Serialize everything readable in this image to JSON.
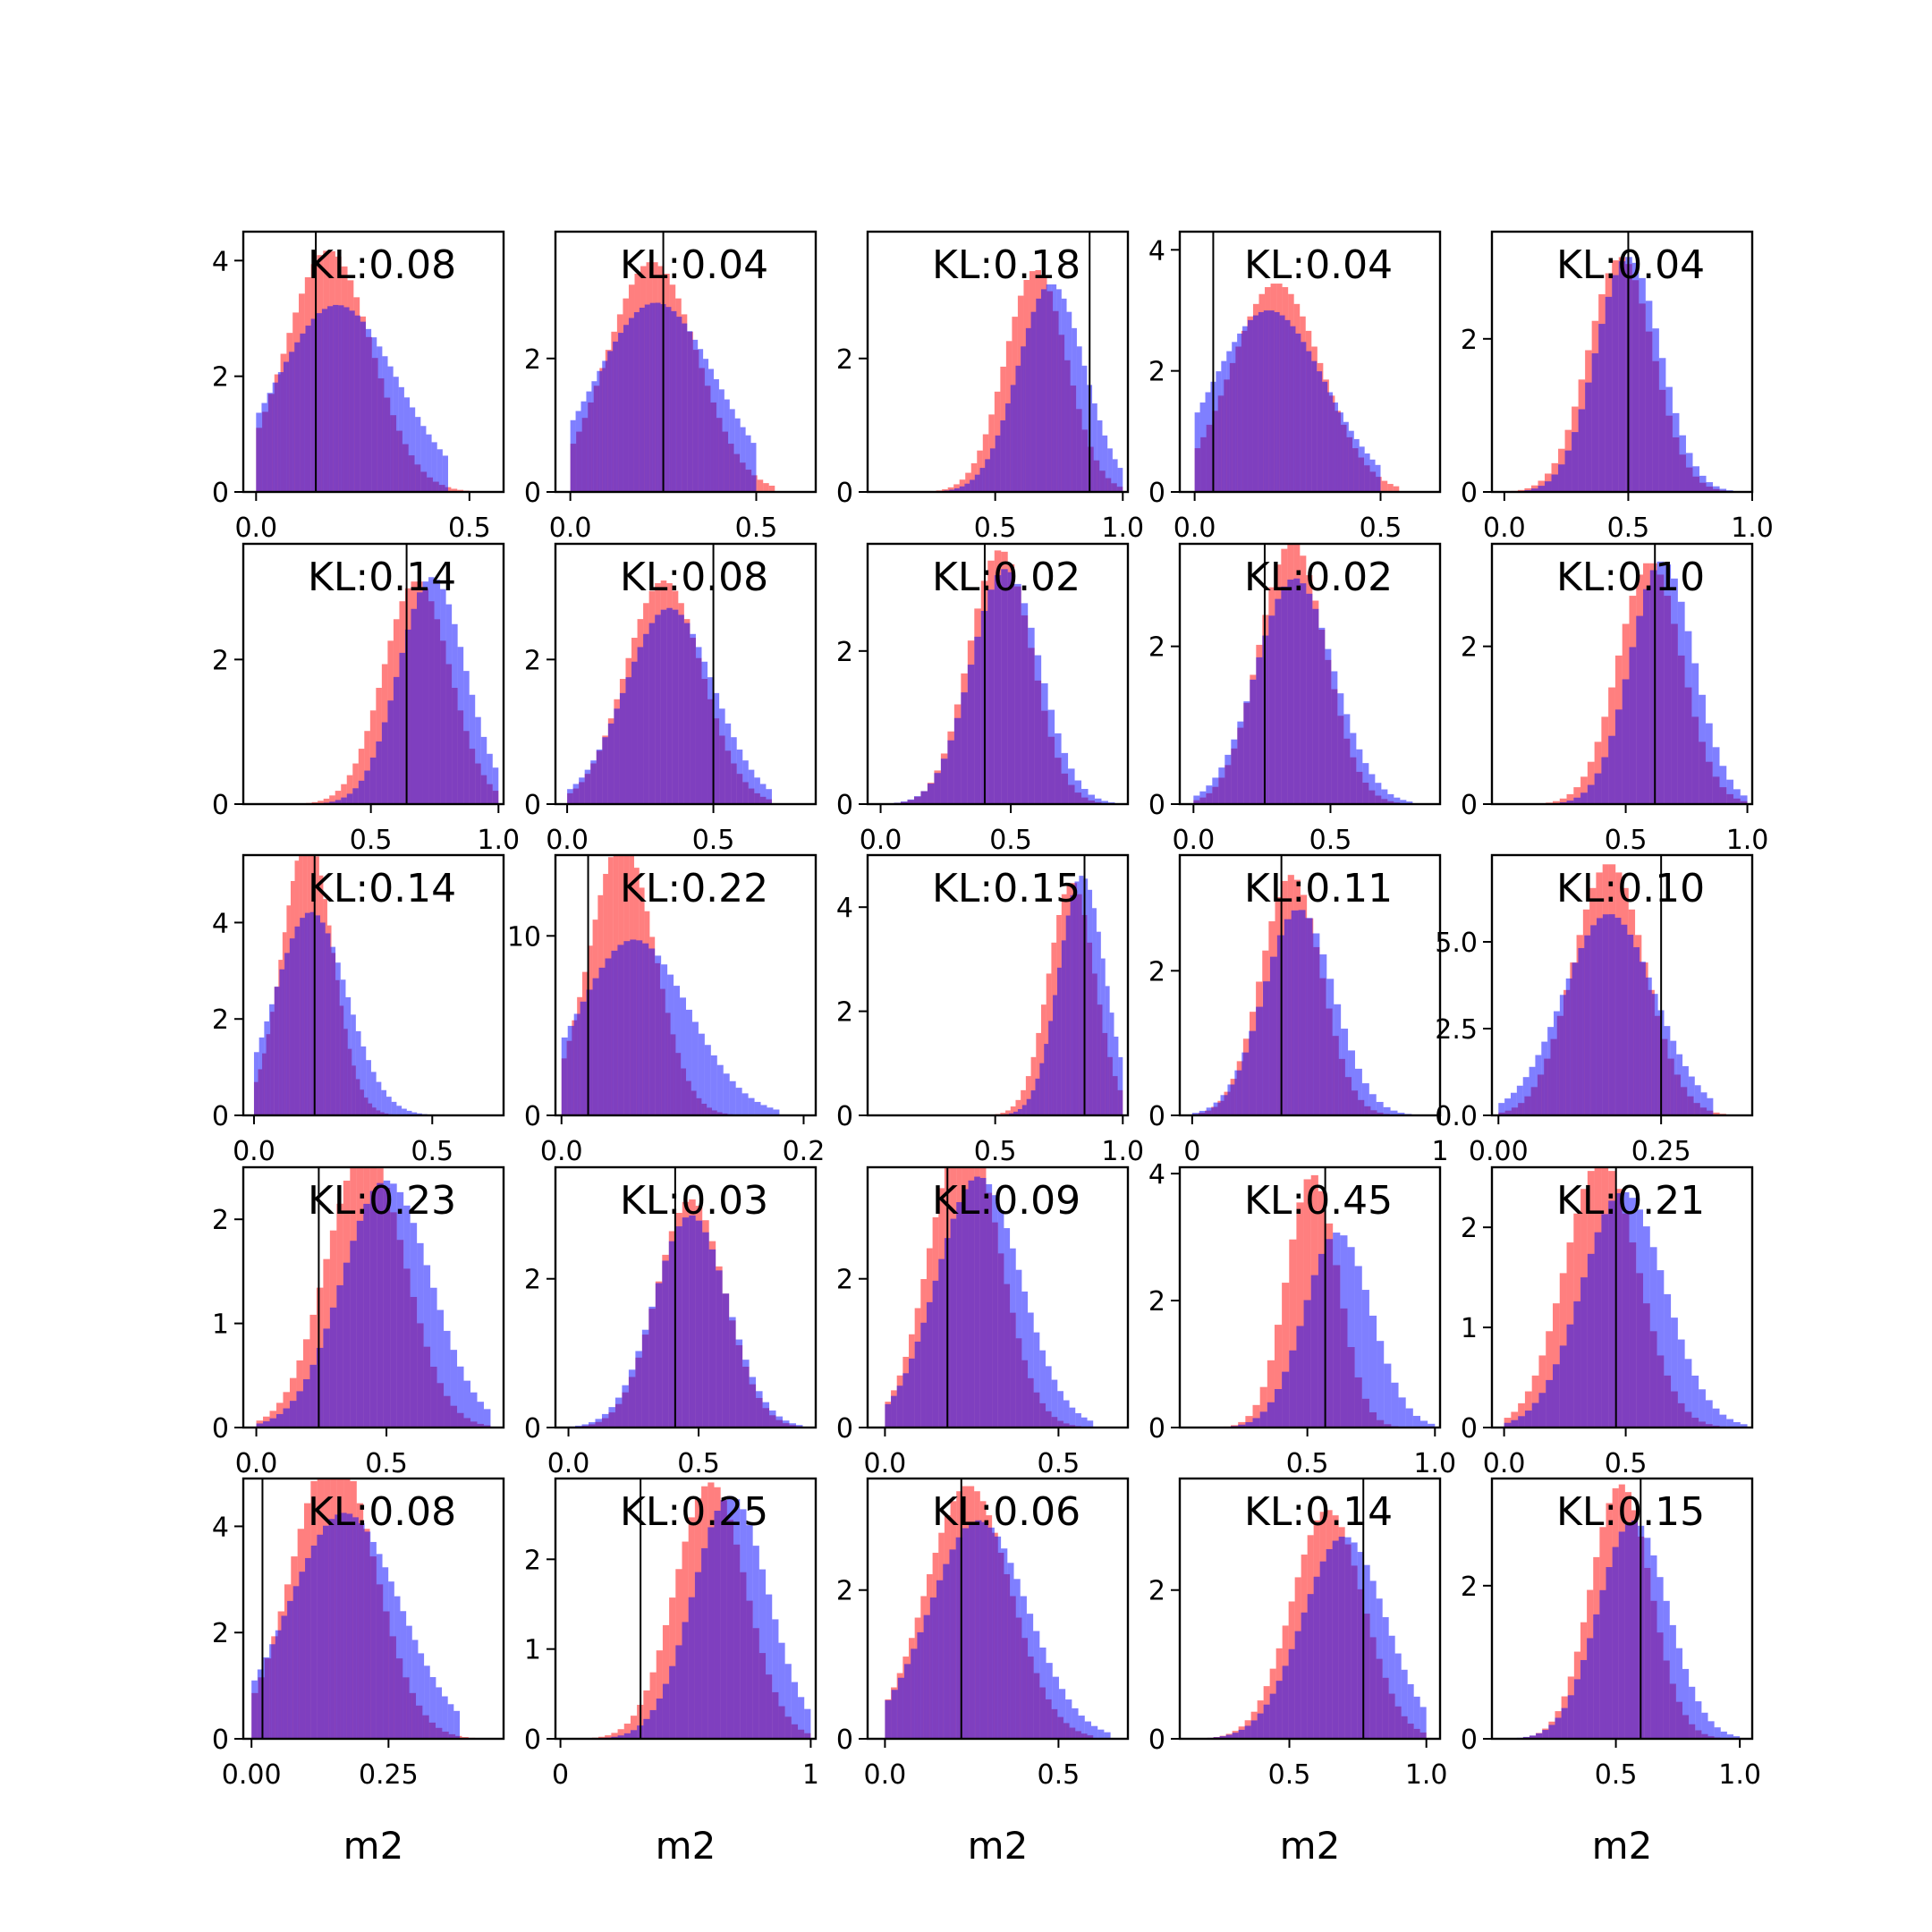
{
  "figure": {
    "background": "#ffffff",
    "red_color": "#ff0000",
    "blue_color": "#0000ff",
    "overlay_opacity": 0.5,
    "marker_color": "#000000",
    "xlabel": "m2"
  },
  "chart_data": [
    {
      "type": "histogram",
      "row": 0,
      "col": 0,
      "annotation": "KL:0.08",
      "xlim": [
        -0.03,
        0.58
      ],
      "ylim": [
        0,
        4.5
      ],
      "xticks": [
        0.0,
        0.5
      ],
      "xtick_labels": [
        "0.0",
        "0.5"
      ],
      "yticks": [
        0,
        2,
        4
      ],
      "ytick_labels": [
        "0",
        "2",
        "4"
      ],
      "marker_x": 0.14,
      "red_dist": {
        "type": "normal",
        "mean": 0.17,
        "sd": 0.1,
        "low": 0.0,
        "high": 0.5
      },
      "blue_dist": {
        "type": "normal",
        "mean": 0.19,
        "sd": 0.14,
        "low": 0.0,
        "high": 0.45
      }
    },
    {
      "type": "histogram",
      "row": 0,
      "col": 1,
      "annotation": "KL:0.04",
      "xlim": [
        -0.04,
        0.66
      ],
      "ylim": [
        0,
        3.9
      ],
      "xticks": [
        0.0,
        0.5
      ],
      "xtick_labels": [
        "0.0",
        "0.5"
      ],
      "yticks": [
        0,
        2
      ],
      "ytick_labels": [
        "0",
        "2"
      ],
      "marker_x": 0.25,
      "red_dist": {
        "type": "normal",
        "mean": 0.22,
        "sd": 0.12,
        "low": 0.0,
        "high": 0.55
      },
      "blue_dist": {
        "type": "normal",
        "mean": 0.23,
        "sd": 0.16,
        "low": 0.0,
        "high": 0.5
      }
    },
    {
      "type": "histogram",
      "row": 0,
      "col": 2,
      "annotation": "KL:0.18",
      "xlim": [
        0.0,
        1.02
      ],
      "ylim": [
        0,
        3.9
      ],
      "xticks": [
        0.5,
        1.0
      ],
      "xtick_labels": [
        "0.5",
        "1.0"
      ],
      "yticks": [
        0,
        2
      ],
      "ytick_labels": [
        "0",
        "2"
      ],
      "marker_x": 0.87,
      "red_dist": {
        "type": "normal",
        "mean": 0.66,
        "sd": 0.12,
        "low": 0.2,
        "high": 1.0
      },
      "blue_dist": {
        "type": "normal",
        "mean": 0.72,
        "sd": 0.13,
        "low": 0.3,
        "high": 1.0
      }
    },
    {
      "type": "histogram",
      "row": 0,
      "col": 3,
      "annotation": "KL:0.04",
      "xlim": [
        -0.04,
        0.66
      ],
      "ylim": [
        0,
        4.3
      ],
      "xticks": [
        0.0,
        0.5
      ],
      "xtick_labels": [
        "0.0",
        "0.5"
      ],
      "yticks": [
        0,
        2,
        4
      ],
      "ytick_labels": [
        "0",
        "2",
        "4"
      ],
      "marker_x": 0.05,
      "red_dist": {
        "type": "normal",
        "mean": 0.22,
        "sd": 0.12,
        "low": 0.0,
        "high": 0.55
      },
      "blue_dist": {
        "type": "normal",
        "mean": 0.2,
        "sd": 0.15,
        "low": 0.0,
        "high": 0.5
      }
    },
    {
      "type": "histogram",
      "row": 0,
      "col": 4,
      "annotation": "KL:0.04",
      "xlim": [
        -0.05,
        1.0
      ],
      "ylim": [
        0,
        3.4
      ],
      "xticks": [
        0.0,
        0.5,
        1.0
      ],
      "xtick_labels": [
        "0.0",
        "0.5",
        "1.0"
      ],
      "yticks": [
        0,
        2
      ],
      "ytick_labels": [
        "0",
        "2"
      ],
      "marker_x": 0.5,
      "red_dist": {
        "type": "normal",
        "mean": 0.47,
        "sd": 0.13,
        "low": 0.0,
        "high": 0.95
      },
      "blue_dist": {
        "type": "normal",
        "mean": 0.5,
        "sd": 0.13,
        "low": 0.0,
        "high": 0.95
      }
    },
    {
      "type": "histogram",
      "row": 1,
      "col": 0,
      "annotation": "KL:0.14",
      "xlim": [
        0.0,
        1.02
      ],
      "ylim": [
        0,
        3.6
      ],
      "xticks": [
        0.5,
        1.0
      ],
      "xtick_labels": [
        "0.5",
        "1.0"
      ],
      "yticks": [
        0,
        2
      ],
      "ytick_labels": [
        "0",
        "2"
      ],
      "marker_x": 0.64,
      "red_dist": {
        "type": "normal",
        "mean": 0.68,
        "sd": 0.13,
        "low": 0.2,
        "high": 1.0
      },
      "blue_dist": {
        "type": "normal",
        "mean": 0.74,
        "sd": 0.13,
        "low": 0.2,
        "high": 1.0
      }
    },
    {
      "type": "histogram",
      "row": 1,
      "col": 1,
      "annotation": "KL:0.08",
      "xlim": [
        -0.04,
        0.85
      ],
      "ylim": [
        0,
        3.6
      ],
      "xticks": [
        0.0,
        0.5
      ],
      "xtick_labels": [
        "0.0",
        "0.5"
      ],
      "yticks": [
        0,
        2
      ],
      "ytick_labels": [
        "0",
        "2"
      ],
      "marker_x": 0.5,
      "red_dist": {
        "type": "normal",
        "mean": 0.33,
        "sd": 0.13,
        "low": 0.0,
        "high": 0.7
      },
      "blue_dist": {
        "type": "normal",
        "mean": 0.35,
        "sd": 0.15,
        "low": 0.0,
        "high": 0.7
      }
    },
    {
      "type": "histogram",
      "row": 1,
      "col": 2,
      "annotation": "KL:0.02",
      "xlim": [
        -0.05,
        0.95
      ],
      "ylim": [
        0,
        3.4
      ],
      "xticks": [
        0.0,
        0.5
      ],
      "xtick_labels": [
        "0.0",
        "0.5"
      ],
      "yticks": [
        0,
        2
      ],
      "ytick_labels": [
        "0",
        "2"
      ],
      "marker_x": 0.4,
      "red_dist": {
        "type": "normal",
        "mean": 0.46,
        "sd": 0.12,
        "low": 0.0,
        "high": 0.9
      },
      "blue_dist": {
        "type": "normal",
        "mean": 0.48,
        "sd": 0.13,
        "low": 0.0,
        "high": 0.9
      }
    },
    {
      "type": "histogram",
      "row": 1,
      "col": 3,
      "annotation": "KL:0.02",
      "xlim": [
        -0.05,
        0.9
      ],
      "ylim": [
        0,
        3.3
      ],
      "xticks": [
        0.0,
        0.5
      ],
      "xtick_labels": [
        "0.0",
        "0.5"
      ],
      "yticks": [
        0,
        2
      ],
      "ytick_labels": [
        "0",
        "2"
      ],
      "marker_x": 0.26,
      "red_dist": {
        "type": "normal",
        "mean": 0.36,
        "sd": 0.12,
        "low": 0.0,
        "high": 0.8
      },
      "blue_dist": {
        "type": "normal",
        "mean": 0.37,
        "sd": 0.14,
        "low": 0.0,
        "high": 0.8
      }
    },
    {
      "type": "histogram",
      "row": 1,
      "col": 4,
      "annotation": "KL:0.10",
      "xlim": [
        -0.05,
        1.02
      ],
      "ylim": [
        0,
        3.3
      ],
      "xticks": [
        0.5,
        1.0
      ],
      "xtick_labels": [
        "0.5",
        "1.0"
      ],
      "yticks": [
        0,
        2
      ],
      "ytick_labels": [
        "0",
        "2"
      ],
      "marker_x": 0.62,
      "red_dist": {
        "type": "normal",
        "mean": 0.6,
        "sd": 0.13,
        "low": 0.0,
        "high": 1.0
      },
      "blue_dist": {
        "type": "normal",
        "mean": 0.65,
        "sd": 0.13,
        "low": 0.0,
        "high": 1.0
      }
    },
    {
      "type": "histogram",
      "row": 2,
      "col": 0,
      "annotation": "KL:0.14",
      "xlim": [
        -0.03,
        0.7
      ],
      "ylim": [
        0,
        5.4
      ],
      "xticks": [
        0.0,
        0.5
      ],
      "xtick_labels": [
        "0.0",
        "0.5"
      ],
      "yticks": [
        0,
        2,
        4
      ],
      "ytick_labels": [
        "0",
        "2",
        "4"
      ],
      "marker_x": 0.17,
      "red_dist": {
        "type": "normal",
        "mean": 0.15,
        "sd": 0.07,
        "low": 0.0,
        "high": 0.4
      },
      "blue_dist": {
        "type": "normal",
        "mean": 0.16,
        "sd": 0.1,
        "low": 0.0,
        "high": 0.5
      }
    },
    {
      "type": "histogram",
      "row": 2,
      "col": 1,
      "annotation": "KL:0.22",
      "xlim": [
        -0.005,
        0.21
      ],
      "ylim": [
        0,
        14.5
      ],
      "xticks": [
        0.0,
        0.2
      ],
      "xtick_labels": [
        "0.0",
        "0.2"
      ],
      "yticks": [
        0,
        10
      ],
      "ytick_labels": [
        "0",
        "10"
      ],
      "marker_x": 0.022,
      "red_dist": {
        "type": "normal",
        "mean": 0.05,
        "sd": 0.027,
        "low": 0.0,
        "high": 0.15
      },
      "blue_dist": {
        "type": "normal",
        "mean": 0.06,
        "sd": 0.045,
        "low": 0.0,
        "high": 0.18
      }
    },
    {
      "type": "histogram",
      "row": 2,
      "col": 2,
      "annotation": "KL:0.15",
      "xlim": [
        0.0,
        1.02
      ],
      "ylim": [
        0,
        5.0
      ],
      "xticks": [
        0.5,
        1.0
      ],
      "xtick_labels": [
        "0.5",
        "1.0"
      ],
      "yticks": [
        0,
        2,
        4
      ],
      "ytick_labels": [
        "0",
        "2",
        "4"
      ],
      "marker_x": 0.85,
      "red_dist": {
        "type": "normal",
        "mean": 0.8,
        "sd": 0.09,
        "low": 0.3,
        "high": 1.0
      },
      "blue_dist": {
        "type": "normal",
        "mean": 0.84,
        "sd": 0.09,
        "low": 0.4,
        "high": 1.0
      }
    },
    {
      "type": "histogram",
      "row": 2,
      "col": 3,
      "annotation": "KL:0.11",
      "xlim": [
        -0.05,
        1.0
      ],
      "ylim": [
        0,
        3.6
      ],
      "xticks": [
        0,
        1
      ],
      "xtick_labels": [
        "0",
        "1"
      ],
      "yticks": [
        0,
        2
      ],
      "ytick_labels": [
        "0",
        "2"
      ],
      "marker_x": 0.36,
      "red_dist": {
        "type": "normal",
        "mean": 0.4,
        "sd": 0.12,
        "low": 0.0,
        "high": 0.9
      },
      "blue_dist": {
        "type": "normal",
        "mean": 0.43,
        "sd": 0.14,
        "low": 0.0,
        "high": 1.0
      }
    },
    {
      "type": "histogram",
      "row": 2,
      "col": 4,
      "annotation": "KL:0.10",
      "xlim": [
        -0.01,
        0.39
      ],
      "ylim": [
        0,
        7.5
      ],
      "xticks": [
        0.0,
        0.25
      ],
      "xtick_labels": [
        "0.00",
        "0.25"
      ],
      "yticks": [
        0,
        2.5,
        5.0
      ],
      "ytick_labels": [
        "0.0",
        "2.5",
        "5.0"
      ],
      "marker_x": 0.25,
      "red_dist": {
        "type": "normal",
        "mean": 0.17,
        "sd": 0.055,
        "low": 0.0,
        "high": 0.35
      },
      "blue_dist": {
        "type": "normal",
        "mean": 0.17,
        "sd": 0.07,
        "low": 0.0,
        "high": 0.33
      }
    },
    {
      "type": "histogram",
      "row": 3,
      "col": 0,
      "annotation": "KL:0.23",
      "xlim": [
        -0.05,
        0.95
      ],
      "ylim": [
        0,
        2.5
      ],
      "xticks": [
        0.0,
        0.5
      ],
      "xtick_labels": [
        "0.0",
        "0.5"
      ],
      "yticks": [
        0,
        1,
        2
      ],
      "ytick_labels": [
        "0",
        "1",
        "2"
      ],
      "marker_x": 0.24,
      "red_dist": {
        "type": "normal",
        "mean": 0.42,
        "sd": 0.15,
        "low": 0.0,
        "high": 0.9
      },
      "blue_dist": {
        "type": "normal",
        "mean": 0.5,
        "sd": 0.17,
        "low": 0.0,
        "high": 0.9
      }
    },
    {
      "type": "histogram",
      "row": 3,
      "col": 1,
      "annotation": "KL:0.03",
      "xlim": [
        -0.05,
        0.95
      ],
      "ylim": [
        0,
        3.5
      ],
      "xticks": [
        0.0,
        0.5
      ],
      "xtick_labels": [
        "0.0",
        "0.5"
      ],
      "yticks": [
        0,
        2
      ],
      "ytick_labels": [
        "0",
        "2"
      ],
      "marker_x": 0.41,
      "red_dist": {
        "type": "normal",
        "mean": 0.47,
        "sd": 0.13,
        "low": 0.0,
        "high": 0.9
      },
      "blue_dist": {
        "type": "normal",
        "mean": 0.47,
        "sd": 0.14,
        "low": 0.0,
        "high": 0.9
      }
    },
    {
      "type": "histogram",
      "row": 3,
      "col": 2,
      "annotation": "KL:0.09",
      "xlim": [
        -0.05,
        0.7
      ],
      "ylim": [
        0,
        3.5
      ],
      "xticks": [
        0.0,
        0.5
      ],
      "xtick_labels": [
        "0.0",
        "0.5"
      ],
      "yticks": [
        0,
        2
      ],
      "ytick_labels": [
        "0",
        "2"
      ],
      "marker_x": 0.18,
      "red_dist": {
        "type": "normal",
        "mean": 0.23,
        "sd": 0.1,
        "low": 0.0,
        "high": 0.6
      },
      "blue_dist": {
        "type": "normal",
        "mean": 0.27,
        "sd": 0.12,
        "low": 0.0,
        "high": 0.6
      }
    },
    {
      "type": "histogram",
      "row": 3,
      "col": 3,
      "annotation": "KL:0.45",
      "xlim": [
        0.0,
        1.02
      ],
      "ylim": [
        0,
        4.1
      ],
      "xticks": [
        0.5,
        1.0
      ],
      "xtick_labels": [
        "0.5",
        "1.0"
      ],
      "yticks": [
        0,
        2,
        4
      ],
      "ytick_labels": [
        "0",
        "2",
        "4"
      ],
      "marker_x": 0.57,
      "red_dist": {
        "type": "normal",
        "mean": 0.52,
        "sd": 0.1,
        "low": 0.0,
        "high": 1.0
      },
      "blue_dist": {
        "type": "normal",
        "mean": 0.62,
        "sd": 0.13,
        "low": 0.0,
        "high": 1.0
      }
    },
    {
      "type": "histogram",
      "row": 3,
      "col": 4,
      "annotation": "KL:0.21",
      "xlim": [
        -0.05,
        1.02
      ],
      "ylim": [
        0,
        2.6
      ],
      "xticks": [
        0.0,
        0.5
      ],
      "xtick_labels": [
        "0.0",
        "0.5"
      ],
      "yticks": [
        0,
        1,
        2
      ],
      "ytick_labels": [
        "0",
        "1",
        "2"
      ],
      "marker_x": 0.46,
      "red_dist": {
        "type": "normal",
        "mean": 0.4,
        "sd": 0.15,
        "low": 0.0,
        "high": 1.0
      },
      "blue_dist": {
        "type": "normal",
        "mean": 0.49,
        "sd": 0.17,
        "low": 0.0,
        "high": 1.0
      }
    },
    {
      "type": "histogram",
      "row": 4,
      "col": 0,
      "annotation": "KL:0.08",
      "xlim": [
        -0.015,
        0.46
      ],
      "ylim": [
        0,
        4.9
      ],
      "xticks": [
        0.0,
        0.25
      ],
      "xtick_labels": [
        "0.00",
        "0.25"
      ],
      "yticks": [
        0,
        2,
        4
      ],
      "ytick_labels": [
        "0",
        "2",
        "4"
      ],
      "marker_x": 0.02,
      "red_dist": {
        "type": "normal",
        "mean": 0.15,
        "sd": 0.075,
        "low": 0.0,
        "high": 0.42
      },
      "blue_dist": {
        "type": "normal",
        "mean": 0.17,
        "sd": 0.1,
        "low": 0.0,
        "high": 0.38
      }
    },
    {
      "type": "histogram",
      "row": 4,
      "col": 1,
      "annotation": "KL:0.25",
      "xlim": [
        -0.02,
        1.02
      ],
      "ylim": [
        0,
        2.9
      ],
      "xticks": [
        0,
        1
      ],
      "xtick_labels": [
        "0",
        "1"
      ],
      "yticks": [
        0,
        1,
        2
      ],
      "ytick_labels": [
        "0",
        "1",
        "2"
      ],
      "marker_x": 0.32,
      "red_dist": {
        "type": "normal",
        "mean": 0.6,
        "sd": 0.14,
        "low": 0.1,
        "high": 1.0
      },
      "blue_dist": {
        "type": "normal",
        "mean": 0.68,
        "sd": 0.15,
        "low": 0.1,
        "high": 1.0
      }
    },
    {
      "type": "histogram",
      "row": 4,
      "col": 2,
      "annotation": "KL:0.06",
      "xlim": [
        -0.05,
        0.7
      ],
      "ylim": [
        0,
        3.5
      ],
      "xticks": [
        0.0,
        0.5
      ],
      "xtick_labels": [
        "0.0",
        "0.5"
      ],
      "yticks": [
        0,
        2
      ],
      "ytick_labels": [
        "0",
        "2"
      ],
      "marker_x": 0.22,
      "red_dist": {
        "type": "normal",
        "mean": 0.24,
        "sd": 0.12,
        "low": 0.0,
        "high": 0.6
      },
      "blue_dist": {
        "type": "normal",
        "mean": 0.27,
        "sd": 0.14,
        "low": 0.0,
        "high": 0.65
      }
    },
    {
      "type": "histogram",
      "row": 4,
      "col": 3,
      "annotation": "KL:0.14",
      "xlim": [
        0.1,
        1.05
      ],
      "ylim": [
        0,
        3.5
      ],
      "xticks": [
        0.5,
        1.0
      ],
      "xtick_labels": [
        "0.5",
        "1.0"
      ],
      "yticks": [
        0,
        2
      ],
      "ytick_labels": [
        "0",
        "2"
      ],
      "marker_x": 0.77,
      "red_dist": {
        "type": "normal",
        "mean": 0.64,
        "sd": 0.13,
        "low": 0.2,
        "high": 1.0
      },
      "blue_dist": {
        "type": "normal",
        "mean": 0.7,
        "sd": 0.15,
        "low": 0.2,
        "high": 1.0
      }
    },
    {
      "type": "histogram",
      "row": 4,
      "col": 4,
      "annotation": "KL:0.15",
      "xlim": [
        0.0,
        1.05
      ],
      "ylim": [
        0,
        3.4
      ],
      "xticks": [
        0.5,
        1.0
      ],
      "xtick_labels": [
        "0.5",
        "1.0"
      ],
      "yticks": [
        0,
        2
      ],
      "ytick_labels": [
        "0",
        "2"
      ],
      "marker_x": 0.6,
      "red_dist": {
        "type": "normal",
        "mean": 0.52,
        "sd": 0.12,
        "low": 0.1,
        "high": 1.0
      },
      "blue_dist": {
        "type": "normal",
        "mean": 0.57,
        "sd": 0.14,
        "low": 0.1,
        "high": 1.0
      }
    }
  ]
}
